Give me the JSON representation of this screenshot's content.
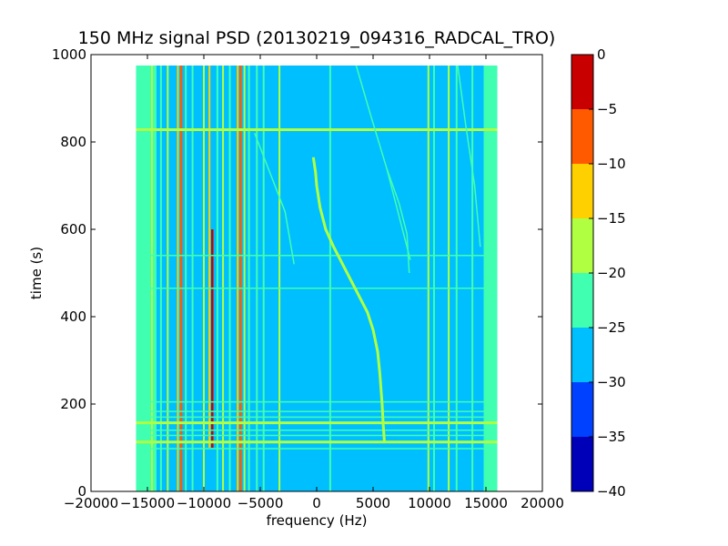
{
  "chart_data": {
    "type": "heatmap",
    "title": "150 MHz signal PSD (20130219_094316_RADCAL_TRO)",
    "xlabel": "frequency (Hz)",
    "ylabel": "time (s)",
    "xlim": [
      -20000,
      20000
    ],
    "ylim": [
      0,
      1000
    ],
    "x_ticks": [
      -20000,
      -15000,
      -10000,
      -5000,
      0,
      5000,
      10000,
      15000,
      20000
    ],
    "x_tick_labels": [
      "−20000",
      "−15000",
      "−10000",
      "−5000",
      "0",
      "5000",
      "10000",
      "15000",
      "20000"
    ],
    "y_ticks": [
      0,
      200,
      400,
      600,
      800,
      1000
    ],
    "y_tick_labels": [
      "0",
      "200",
      "400",
      "600",
      "800",
      "1000"
    ],
    "data_extent": {
      "x": [
        -16000,
        16000
      ],
      "y": [
        0,
        975
      ]
    },
    "background_level": -27.5,
    "colorbar": {
      "levels": [
        -40,
        -35,
        -30,
        -25,
        -20,
        -15,
        -10,
        -5,
        0
      ],
      "tick_labels": [
        "−40",
        "−35",
        "−30",
        "−25",
        "−20",
        "−15",
        "−10",
        "−5",
        "0"
      ],
      "colors": [
        "#0000b8",
        "#0040ff",
        "#00bfff",
        "#40ffb0",
        "#b0ff40",
        "#ffd000",
        "#ff5a00",
        "#c80000"
      ]
    },
    "edge_bands": [
      {
        "x0": -16000,
        "x1": -14200,
        "level": -22.5
      },
      {
        "x0": 14800,
        "x1": 16000,
        "level": -22.5
      }
    ],
    "vertical_lines": [
      {
        "x": -15200,
        "y0": 0,
        "y1": 975,
        "level": -22.5
      },
      {
        "x": -14600,
        "y0": 0,
        "y1": 975,
        "level": -17.5
      },
      {
        "x": -13800,
        "y0": 0,
        "y1": 975,
        "level": -22.5
      },
      {
        "x": -13200,
        "y0": 0,
        "y1": 975,
        "level": -17.5
      },
      {
        "x": -12300,
        "y0": 0,
        "y1": 975,
        "level": -12.5
      },
      {
        "x": -12000,
        "y0": 0,
        "y1": 975,
        "level": -7.5
      },
      {
        "x": -11600,
        "y0": 0,
        "y1": 975,
        "level": -22.5
      },
      {
        "x": -11000,
        "y0": 0,
        "y1": 975,
        "level": -22.5
      },
      {
        "x": -10000,
        "y0": 0,
        "y1": 975,
        "level": -17.5
      },
      {
        "x": -9500,
        "y0": 100,
        "y1": 975,
        "level": -12.5
      },
      {
        "x": -9250,
        "y0": 100,
        "y1": 600,
        "level": -2.5
      },
      {
        "x": -8800,
        "y0": 0,
        "y1": 975,
        "level": -22.5
      },
      {
        "x": -8300,
        "y0": 0,
        "y1": 975,
        "level": -17.5
      },
      {
        "x": -7700,
        "y0": 0,
        "y1": 975,
        "level": -22.5
      },
      {
        "x": -7000,
        "y0": 0,
        "y1": 975,
        "level": -12.5
      },
      {
        "x": -6750,
        "y0": 0,
        "y1": 975,
        "level": -7.5
      },
      {
        "x": -6400,
        "y0": 0,
        "y1": 975,
        "level": -17.5
      },
      {
        "x": -6000,
        "y0": 0,
        "y1": 975,
        "level": -22.5
      },
      {
        "x": -5300,
        "y0": 0,
        "y1": 975,
        "level": -22.5
      },
      {
        "x": -4700,
        "y0": 0,
        "y1": 975,
        "level": -22.5
      },
      {
        "x": -3300,
        "y0": 0,
        "y1": 975,
        "level": -17.5
      },
      {
        "x": 1200,
        "y0": 0,
        "y1": 975,
        "level": -22.5
      },
      {
        "x": 9900,
        "y0": 0,
        "y1": 975,
        "level": -17.5
      },
      {
        "x": 10400,
        "y0": 0,
        "y1": 975,
        "level": -22.5
      },
      {
        "x": 11700,
        "y0": 0,
        "y1": 975,
        "level": -17.5
      },
      {
        "x": 12400,
        "y0": 0,
        "y1": 975,
        "level": -22.5
      },
      {
        "x": 13800,
        "y0": 0,
        "y1": 975,
        "level": -22.5
      }
    ],
    "horizontal_lines": [
      {
        "y": 828,
        "x0": -16000,
        "x1": 16000,
        "level": -17.5
      },
      {
        "y": 540,
        "x0": -16000,
        "x1": 16000,
        "level": -22.5
      },
      {
        "y": 465,
        "x0": -16000,
        "x1": 16000,
        "level": -22.5
      },
      {
        "y": 205,
        "x0": -16000,
        "x1": 16000,
        "level": -22.5
      },
      {
        "y": 183,
        "x0": -16000,
        "x1": 16000,
        "level": -22.5
      },
      {
        "y": 170,
        "x0": -16000,
        "x1": 16000,
        "level": -22.5
      },
      {
        "y": 157,
        "x0": -16000,
        "x1": 16000,
        "level": -17.5
      },
      {
        "y": 140,
        "x0": -16000,
        "x1": 16000,
        "level": -22.5
      },
      {
        "y": 128,
        "x0": -16000,
        "x1": 16000,
        "level": -22.5
      },
      {
        "y": 113,
        "x0": -16000,
        "x1": 16000,
        "level": -17.5
      },
      {
        "y": 98,
        "x0": -16000,
        "x1": 16000,
        "level": -22.5
      }
    ],
    "tracks": [
      {
        "level": -17.5,
        "points": [
          [
            -300,
            765
          ],
          [
            -100,
            730
          ],
          [
            0,
            700
          ],
          [
            300,
            650
          ],
          [
            800,
            600
          ],
          [
            1500,
            560
          ],
          [
            2500,
            510
          ],
          [
            3500,
            460
          ],
          [
            4500,
            410
          ],
          [
            5000,
            370
          ],
          [
            5400,
            320
          ],
          [
            5600,
            270
          ],
          [
            5800,
            200
          ],
          [
            5900,
            150
          ],
          [
            6000,
            115
          ]
        ]
      },
      {
        "level": -22.5,
        "points": [
          [
            3500,
            975
          ],
          [
            4800,
            860
          ],
          [
            6200,
            740
          ],
          [
            7200,
            640
          ],
          [
            7800,
            580
          ],
          [
            8300,
            530
          ]
        ]
      },
      {
        "level": -22.5,
        "points": [
          [
            6200,
            740
          ],
          [
            7300,
            660
          ],
          [
            8000,
            590
          ],
          [
            8200,
            500
          ]
        ]
      },
      {
        "level": -22.5,
        "points": [
          [
            -5500,
            820
          ],
          [
            -4000,
            720
          ],
          [
            -2800,
            640
          ],
          [
            -2000,
            520
          ]
        ]
      },
      {
        "level": -22.5,
        "points": [
          [
            12500,
            975
          ],
          [
            13200,
            840
          ],
          [
            14000,
            700
          ],
          [
            14500,
            560
          ]
        ]
      }
    ]
  }
}
